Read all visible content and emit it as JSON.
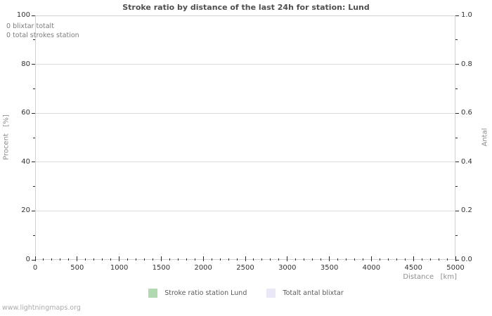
{
  "chart_data": {
    "type": "bar",
    "title": "Stroke ratio by distance of the last 24h for station: Lund",
    "x": [],
    "series": [
      {
        "name": "Stroke ratio station Lund",
        "axis": "left",
        "color": "#b0d9b0",
        "values": []
      },
      {
        "name": "Totalt antal blixtar",
        "axis": "right",
        "color": "#e8e8f8",
        "values": []
      }
    ],
    "annotations": [
      "0 blixtar totalt",
      "0 total strokes station"
    ],
    "xlabel": "Distance   [km]",
    "ylabel_left": "Procent   [%]",
    "ylabel_right": "Antal",
    "xlim": [
      0,
      5000
    ],
    "ylim_left": [
      0,
      100
    ],
    "ylim_right": [
      0,
      1
    ],
    "x_major_ticks": [
      0,
      500,
      1000,
      1500,
      2000,
      2500,
      3000,
      3500,
      4000,
      4500,
      5000
    ],
    "x_minor_step": 100,
    "left_major_ticks": [
      0,
      20,
      40,
      60,
      80,
      100
    ],
    "left_minor_step": 10,
    "right_major_tick_labels": [
      "0.0",
      "0.2",
      "0.4",
      "0.6",
      "0.8",
      "1.0"
    ],
    "right_minor_step": 0.1,
    "grid": "horizontal-major-only",
    "legend_position": "bottom-center"
  },
  "footer": {
    "link": "www.lightningmaps.org"
  }
}
